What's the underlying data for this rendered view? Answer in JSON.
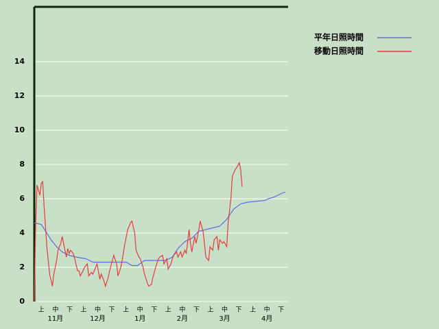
{
  "chart_data": {
    "type": "line",
    "series": [
      {
        "name": "平年日照時間",
        "color": "#5a6ee8",
        "x": [
          0,
          5,
          9,
          12,
          16,
          20,
          25,
          30,
          37,
          42,
          54,
          66,
          70,
          74,
          79,
          94,
          99,
          103,
          108,
          113,
          118,
          123,
          133,
          138,
          143,
          148,
          153,
          165,
          168,
          172,
          177,
          180
        ],
        "values": [
          4.6,
          4.5,
          4.0,
          3.6,
          3.2,
          2.9,
          2.7,
          2.6,
          2.5,
          2.3,
          2.3,
          2.3,
          2.1,
          2.1,
          2.4,
          2.4,
          2.6,
          3.1,
          3.5,
          3.7,
          4.1,
          4.2,
          4.4,
          4.8,
          5.4,
          5.7,
          5.8,
          5.9,
          6.0,
          6.1,
          6.3,
          6.4
        ]
      },
      {
        "name": "移動日照時間",
        "color": "#e83a3a",
        "x": [
          0,
          1,
          2,
          4,
          5,
          6,
          7,
          9,
          11,
          13,
          14,
          16,
          17,
          19,
          20,
          22,
          23,
          24,
          25,
          26,
          28,
          29,
          31,
          32,
          33,
          35,
          36,
          38,
          39,
          41,
          42,
          44,
          45,
          47,
          48,
          50,
          51,
          53,
          54,
          56,
          57,
          59,
          60,
          62,
          63,
          65,
          66,
          67,
          69,
          70,
          72,
          73,
          75,
          76,
          78,
          79,
          81,
          82,
          84,
          85,
          87,
          89,
          90,
          92,
          93,
          95,
          96,
          98,
          99,
          100,
          102,
          103,
          105,
          106,
          108,
          109,
          111,
          112,
          113,
          115,
          116,
          118,
          119,
          121,
          122,
          123,
          125,
          126,
          128,
          129,
          131,
          132,
          133,
          135,
          136,
          138,
          139,
          141,
          142,
          144,
          145,
          147,
          148,
          149
        ],
        "values": [
          0,
          4.6,
          6.8,
          6.2,
          6.9,
          7.0,
          5.6,
          3.2,
          1.6,
          0.9,
          1.6,
          2.4,
          3.0,
          3.4,
          3.8,
          3.0,
          2.6,
          3.1,
          2.8,
          3.0,
          2.8,
          2.5,
          1.8,
          1.8,
          1.5,
          1.8,
          2.0,
          2.2,
          1.5,
          1.7,
          1.6,
          2.0,
          2.2,
          1.3,
          1.6,
          1.2,
          0.9,
          1.4,
          1.8,
          2.4,
          2.7,
          2.2,
          1.5,
          2.0,
          2.4,
          3.4,
          3.8,
          4.2,
          4.6,
          4.7,
          4.0,
          3.0,
          2.6,
          2.5,
          2.0,
          1.6,
          1.1,
          0.9,
          1.0,
          1.4,
          2.0,
          2.5,
          2.6,
          2.7,
          2.2,
          2.5,
          1.9,
          2.2,
          2.5,
          2.7,
          2.9,
          2.6,
          2.9,
          2.6,
          3.0,
          2.8,
          4.2,
          3.4,
          2.9,
          3.8,
          3.4,
          4.2,
          4.7,
          4.1,
          3.4,
          2.6,
          2.4,
          3.2,
          3.0,
          3.6,
          3.8,
          3.0,
          3.6,
          3.4,
          3.5,
          3.2,
          4.6,
          6.0,
          7.3,
          7.7,
          7.8,
          8.1,
          7.7,
          6.7
        ]
      }
    ],
    "xlim": [
      0,
      182
    ],
    "ylim": [
      0,
      17.2
    ],
    "yticks": [
      0,
      2,
      4,
      6,
      8,
      10,
      12,
      14
    ],
    "x_period_labels": [
      "上",
      "中",
      "下",
      "上",
      "中",
      "下",
      "上",
      "中",
      "下",
      "上",
      "中",
      "下",
      "上",
      "中",
      "下",
      "上",
      "中",
      "下"
    ],
    "x_month_labels": [
      "11月",
      "12月",
      "1月",
      "2月",
      "3月",
      "4月"
    ],
    "grid": true
  }
}
